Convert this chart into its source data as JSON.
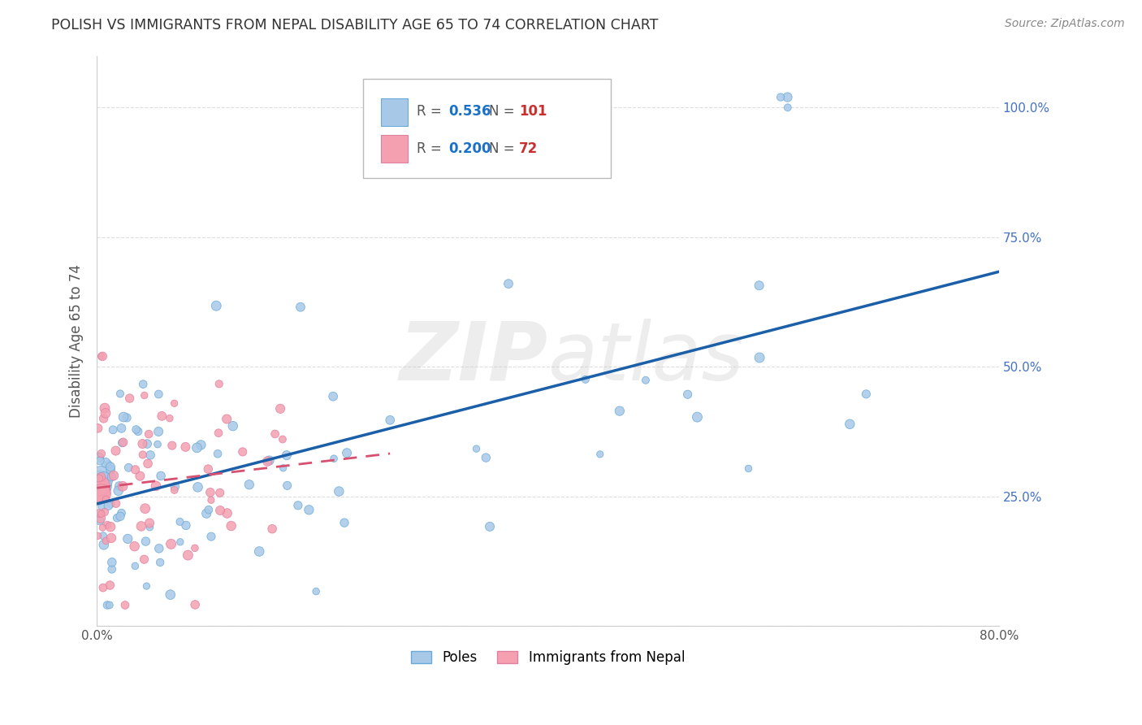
{
  "title": "POLISH VS IMMIGRANTS FROM NEPAL DISABILITY AGE 65 TO 74 CORRELATION CHART",
  "source": "Source: ZipAtlas.com",
  "ylabel": "Disability Age 65 to 74",
  "xlim": [
    0.0,
    0.8
  ],
  "ylim": [
    0.0,
    1.1
  ],
  "ytick_values": [
    0.0,
    0.25,
    0.5,
    0.75,
    1.0
  ],
  "ytick_labels": [
    "",
    "25.0%",
    "50.0%",
    "75.0%",
    "100.0%"
  ],
  "xtick_values": [
    0.0,
    0.1,
    0.2,
    0.3,
    0.4,
    0.5,
    0.6,
    0.7,
    0.8
  ],
  "xtick_labels": [
    "0.0%",
    "",
    "",
    "",
    "",
    "",
    "",
    "",
    "80.0%"
  ],
  "legend_blue_r": "0.536",
  "legend_blue_n": "101",
  "legend_pink_r": "0.200",
  "legend_pink_n": "72",
  "blue_color": "#A8C8E8",
  "pink_color": "#F4A0B0",
  "blue_edge_color": "#6AAAD8",
  "pink_edge_color": "#E080A0",
  "blue_line_color": "#1A5FA8",
  "pink_line_color": "#D85070",
  "watermark": "ZIPatlas",
  "grid_color": "#DDDDDD",
  "spine_color": "#CCCCCC",
  "title_color": "#333333",
  "source_color": "#888888",
  "ylabel_color": "#555555",
  "tick_color": "#555555",
  "right_tick_color": "#4472C4"
}
